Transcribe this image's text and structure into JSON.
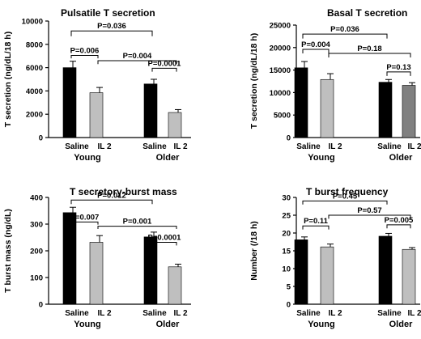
{
  "chart_data": [
    {
      "type": "bar",
      "title": "Pulsatile T secretion",
      "ylabel": "T secretion (ng/dL/18 h)",
      "ylim": [
        0,
        10000
      ],
      "yticks": [
        0,
        2000,
        4000,
        6000,
        8000,
        10000
      ],
      "categories": [
        "Saline",
        "IL 2",
        "Saline",
        "IL 2"
      ],
      "groups": [
        "Young",
        "Older"
      ],
      "values": [
        6000,
        3850,
        4600,
        2150
      ],
      "errors": [
        550,
        450,
        400,
        250
      ],
      "colors": [
        "#000000",
        "#bfbfbf",
        "#000000",
        "#bfbfbf"
      ],
      "annotations": [
        {
          "label": "P=0.036",
          "from": 0,
          "to": 2,
          "level": 9150,
          "drop_left": 8700,
          "drop_right": 8700
        },
        {
          "label": "P=0.006",
          "from": 0,
          "to": 1,
          "level": 7050,
          "drop_left": 6800,
          "drop_right": 6800
        },
        {
          "label": "P=0.004",
          "from": 1,
          "to": 3,
          "level": 6600,
          "drop_left": 6300,
          "drop_right": 6300
        },
        {
          "label": "P=0.0001",
          "from": 2,
          "to": 3,
          "level": 5950,
          "drop_left": 5650,
          "drop_right": 5650
        }
      ]
    },
    {
      "type": "bar",
      "title": "Basal T secretion",
      "ylabel": "T secretion (ng/dL/18 h)",
      "ylim": [
        0,
        25000
      ],
      "yticks": [
        0,
        5000,
        10000,
        15000,
        20000,
        25000
      ],
      "categories": [
        "Saline",
        "IL 2",
        "Saline",
        "IL 2"
      ],
      "groups": [
        "Young",
        "Older"
      ],
      "values": [
        15500,
        12900,
        12300,
        11600
      ],
      "errors": [
        1400,
        1300,
        600,
        600
      ],
      "colors": [
        "#000000",
        "#bfbfbf",
        "#000000",
        "#808080"
      ],
      "annotations": [
        {
          "label": "P=0.036",
          "from": 0,
          "to": 2,
          "level": 23000,
          "drop_left": 22000,
          "drop_right": 22000
        },
        {
          "label": "P=0.004",
          "from": 0,
          "to": 1,
          "level": 19600,
          "drop_left": 18700,
          "drop_right": 18700
        },
        {
          "label": "P=0.18",
          "from": 1,
          "to": 3,
          "level": 18700,
          "drop_left": 17800,
          "drop_right": 17800
        },
        {
          "label": "P=0.13",
          "from": 2,
          "to": 3,
          "level": 14600,
          "drop_left": 13700,
          "drop_right": 13700
        }
      ]
    },
    {
      "type": "bar",
      "title": "T secretory-burst mass",
      "ylabel": "T burst mass (ng/dL)",
      "ylim": [
        0,
        400
      ],
      "yticks": [
        0,
        100,
        200,
        300,
        400
      ],
      "categories": [
        "Saline",
        "IL 2",
        "Saline",
        "IL 2"
      ],
      "groups": [
        "Young",
        "Older"
      ],
      "values": [
        343,
        232,
        252,
        140
      ],
      "errors": [
        20,
        25,
        18,
        10
      ],
      "colors": [
        "#000000",
        "#bfbfbf",
        "#000000",
        "#bfbfbf"
      ],
      "annotations": [
        {
          "label": "P=0.012",
          "from": 0,
          "to": 2,
          "level": 390,
          "drop_left": 375,
          "drop_right": 375
        },
        {
          "label": "P=0.007",
          "from": 0,
          "to": 1,
          "level": 308,
          "drop_left": 298,
          "drop_right": 298
        },
        {
          "label": "P=0.001",
          "from": 1,
          "to": 3,
          "level": 292,
          "drop_left": 282,
          "drop_right": 282
        },
        {
          "label": "P=0.0001",
          "from": 2,
          "to": 3,
          "level": 232,
          "drop_left": 220,
          "drop_right": 220
        }
      ]
    },
    {
      "type": "bar",
      "title": "T burst frequency",
      "ylabel": "Number (/18 h)",
      "ylim": [
        0,
        30
      ],
      "yticks": [
        0,
        5,
        10,
        15,
        20,
        25,
        30
      ],
      "categories": [
        "Saline",
        "IL 2",
        "Saline",
        "IL 2"
      ],
      "groups": [
        "Young",
        "Older"
      ],
      "values": [
        18.1,
        16.1,
        19.1,
        15.4
      ],
      "errors": [
        0.8,
        0.8,
        0.8,
        0.5
      ],
      "colors": [
        "#000000",
        "#bfbfbf",
        "#000000",
        "#bfbfbf"
      ],
      "annotations": [
        {
          "label": "P=0.45",
          "from": 0,
          "to": 2,
          "level": 29.0,
          "drop_left": 28.0,
          "drop_right": 28.0
        },
        {
          "label": "P=0.11",
          "from": 0,
          "to": 1,
          "level": 22.0,
          "drop_left": 21.0,
          "drop_right": 21.0
        },
        {
          "label": "P=0.57",
          "from": 1,
          "to": 3,
          "level": 25.0,
          "drop_left": 24.0,
          "drop_right": 24.0
        },
        {
          "label": "P=0.005",
          "from": 2,
          "to": 3,
          "level": 22.3,
          "drop_left": 21.3,
          "drop_right": 21.3
        }
      ]
    }
  ]
}
